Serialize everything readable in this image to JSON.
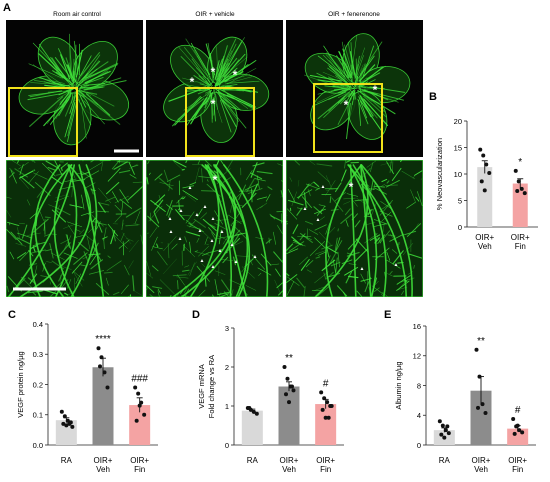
{
  "panel_a": {
    "letter": "A",
    "columns": [
      "Room air control",
      "OIR + vehicle",
      "OIR + fenerenone"
    ],
    "asterisk": "*",
    "arrowhead": "▲",
    "vessel_color": "#3fe03a",
    "box_color": "#f2e21a"
  },
  "panels": {
    "B": {
      "letter": "B",
      "ylabel": "% Neovascularization",
      "sig": [
        "",
        "*"
      ]
    },
    "C": {
      "letter": "C",
      "ylabel": "VEGF protein ng/µg",
      "sig": [
        "",
        "****",
        "###"
      ]
    },
    "D": {
      "letter": "D",
      "ylabel": "VEGF mRNA",
      "ylabel2": "Fold change vs RA",
      "sig": [
        "",
        "**",
        "#"
      ]
    },
    "E": {
      "letter": "E",
      "ylabel": "Albumin ng/µg",
      "sig": [
        "",
        "**",
        "#"
      ]
    }
  },
  "colors": {
    "RA": "#d9d9d9",
    "Veh": "#8c8c8c",
    "Fin": "#f4a3a3"
  },
  "chart_data": [
    {
      "panel": "B",
      "type": "bar",
      "categories": [
        [
          "OIR+",
          "Veh"
        ],
        [
          "OIR+",
          "Fin"
        ]
      ],
      "ylim": [
        0,
        20
      ],
      "yticks": [
        0,
        5,
        10,
        15,
        20
      ],
      "values": [
        11.3,
        8.2
      ],
      "sem": [
        1.2,
        0.9
      ],
      "points": [
        [
          14.6,
          13.5,
          11.8,
          10.2,
          8.6,
          6.9
        ],
        [
          10.6,
          8.6,
          7.2,
          6.4,
          6.8
        ]
      ],
      "bar_colors": [
        "RA",
        "Fin"
      ]
    },
    {
      "panel": "C",
      "type": "bar",
      "categories": [
        [
          "RA"
        ],
        [
          "OIR+",
          "Veh"
        ],
        [
          "OIR+",
          "Fin"
        ]
      ],
      "ylim": [
        0,
        0.4
      ],
      "yticks": [
        0,
        0.1,
        0.2,
        0.3,
        0.4
      ],
      "ytick_labels": [
        "0.0",
        "0.1",
        "0.2",
        "0.3",
        "0.4"
      ],
      "values": [
        0.082,
        0.257,
        0.132
      ],
      "sem": [
        0.008,
        0.03,
        0.024
      ],
      "points": [
        [
          0.11,
          0.095,
          0.08,
          0.075,
          0.07,
          0.065,
          0.07,
          0.06
        ],
        [
          0.32,
          0.29,
          0.24,
          0.19,
          0.26
        ],
        [
          0.19,
          0.17,
          0.14,
          0.1,
          0.08,
          0.13
        ]
      ],
      "bar_colors": [
        "RA",
        "Veh",
        "Fin"
      ]
    },
    {
      "panel": "D",
      "type": "bar",
      "categories": [
        [
          "RA"
        ],
        [
          "OIR+",
          "Veh"
        ],
        [
          "OIR+",
          "Fin"
        ]
      ],
      "ylim": [
        0,
        3
      ],
      "yticks": [
        0,
        1,
        2,
        3
      ],
      "values": [
        0.88,
        1.5,
        1.05
      ],
      "sem": [
        0.04,
        0.12,
        0.12
      ],
      "points": [
        [
          0.95,
          0.9,
          0.85,
          0.8,
          0.95
        ],
        [
          2.0,
          1.7,
          1.5,
          1.4,
          1.3,
          1.1,
          1.5
        ],
        [
          1.35,
          1.2,
          1.1,
          1.0,
          0.9,
          0.7,
          0.7,
          1.0
        ]
      ],
      "bar_colors": [
        "RA",
        "Veh",
        "Fin"
      ]
    },
    {
      "panel": "E",
      "type": "bar",
      "categories": [
        [
          "RA"
        ],
        [
          "OIR+",
          "Veh"
        ],
        [
          "OIR+",
          "Fin"
        ]
      ],
      "ylim": [
        0,
        16
      ],
      "yticks": [
        0,
        4,
        8,
        12,
        16
      ],
      "values": [
        2.0,
        7.3,
        2.2
      ],
      "sem": [
        0.3,
        1.9,
        0.4
      ],
      "points": [
        [
          3.2,
          2.6,
          2.0,
          1.6,
          1.4,
          1.0,
          2.5
        ],
        [
          12.8,
          9.2,
          5.5,
          4.3,
          5.0
        ],
        [
          3.5,
          2.5,
          2.0,
          1.7,
          1.5,
          2.6
        ]
      ],
      "bar_colors": [
        "RA",
        "Veh",
        "Fin"
      ]
    }
  ]
}
